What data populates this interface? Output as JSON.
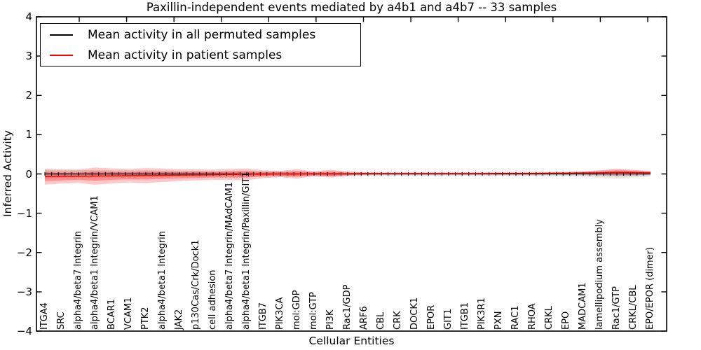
{
  "chart_data": {
    "type": "line",
    "title": "Paxillin-independent events mediated by a4b1 and a4b7 -- 33 samples",
    "xlabel": "Cellular Entities",
    "ylabel": "Inferred Activity",
    "ylim": [
      -4,
      4
    ],
    "yticks": [
      4,
      3,
      2,
      1,
      0,
      -1,
      -2,
      -3,
      -4
    ],
    "grid": false,
    "legend_position": "upper left",
    "categories": [
      "ITGA4",
      "SRC",
      "alpha4/beta7 Integrin",
      "alpha4/beta1 Integrin/VCAM1",
      "BCAR1",
      "VCAM1",
      "PTK2",
      "alpha4/beta1 Integrin",
      "JAK2",
      "p130Cas/Crk/Dock1",
      "cell adhesion",
      "alpha4/beta7 Integrin/MAdCAM1",
      "alpha4/beta1 Integrin/Paxillin/GIT1",
      "ITGB7",
      "PIK3CA",
      "mol:GDP",
      "mol:GTP",
      "PI3K",
      "Rac1/GDP",
      "ARF6",
      "CBL",
      "CRK",
      "DOCK1",
      "EPOR",
      "GIT1",
      "ITGB1",
      "PIK3R1",
      "PXN",
      "RAC1",
      "RHOA",
      "CRKL",
      "EPO",
      "MADCAM1",
      "lamellipodium assembly",
      "Rac1/GTP",
      "CRKL/CBL",
      "EPO/EPOR (dimer)"
    ],
    "series": [
      {
        "name": "Mean activity in all permuted samples",
        "color": "#000000",
        "values": [
          0,
          0,
          0,
          0,
          0,
          0,
          0,
          0,
          0,
          0,
          0,
          0,
          0,
          0,
          0,
          0,
          0,
          0,
          0,
          0,
          0,
          0,
          0,
          0,
          0,
          0,
          0,
          0,
          0,
          0,
          0,
          0,
          0,
          0,
          0,
          0,
          0
        ]
      },
      {
        "name": "Mean activity in patient samples",
        "color": "#ff0000",
        "values": [
          -0.07,
          -0.065,
          -0.06,
          -0.055,
          -0.05,
          -0.045,
          -0.04,
          -0.035,
          -0.03,
          -0.025,
          -0.02,
          -0.015,
          -0.01,
          -0.005,
          0,
          0,
          0.005,
          0.005,
          0.005,
          0.01,
          0.01,
          0.01,
          0.01,
          0.01,
          0.01,
          0.01,
          0.01,
          0.015,
          0.015,
          0.015,
          0.02,
          0.02,
          0.025,
          0.03,
          0.04,
          0.035,
          0.03
        ]
      }
    ],
    "bands": [
      {
        "name": "permuted samples spread outer",
        "color": "#000000",
        "opacity": 0.09,
        "center_series": 0,
        "half_width": [
          0.11,
          0.1,
          0.1,
          0.1,
          0.095,
          0.09,
          0.09,
          0.085,
          0.08,
          0.08,
          0.075,
          0.075,
          0.08,
          0.07,
          0.075,
          0.07,
          0.06,
          0.065,
          0.06,
          0.055,
          0.05,
          0.05,
          0.05,
          0.05,
          0.05,
          0.05,
          0.05,
          0.05,
          0.05,
          0.055,
          0.055,
          0.06,
          0.07,
          0.1,
          0.12,
          0.1,
          0.06
        ]
      },
      {
        "name": "permuted samples spread inner",
        "color": "#000000",
        "opacity": 0.08,
        "center_series": 0,
        "half_width": [
          0.066,
          0.06,
          0.06,
          0.06,
          0.057,
          0.054,
          0.054,
          0.051,
          0.048,
          0.048,
          0.045,
          0.045,
          0.048,
          0.042,
          0.045,
          0.042,
          0.036,
          0.039,
          0.036,
          0.033,
          0.03,
          0.03,
          0.03,
          0.03,
          0.03,
          0.03,
          0.03,
          0.03,
          0.03,
          0.033,
          0.033,
          0.036,
          0.042,
          0.06,
          0.072,
          0.06,
          0.036
        ]
      },
      {
        "name": "patient samples spread outer",
        "color": "#ff0000",
        "opacity": 0.22,
        "center_series": 1,
        "half_width": [
          0.2,
          0.18,
          0.17,
          0.22,
          0.19,
          0.17,
          0.19,
          0.17,
          0.15,
          0.14,
          0.13,
          0.14,
          0.15,
          0.1,
          0.08,
          0.12,
          0.06,
          0.1,
          0.05,
          0.03,
          0.02,
          0.02,
          0.02,
          0.02,
          0.02,
          0.02,
          0.02,
          0.02,
          0.02,
          0.02,
          0.02,
          0.03,
          0.04,
          0.06,
          0.09,
          0.07,
          0.05
        ]
      },
      {
        "name": "patient samples spread inner",
        "color": "#ff0000",
        "opacity": 0.28,
        "center_series": 1,
        "half_width": [
          0.11,
          0.1,
          0.09,
          0.12,
          0.1,
          0.09,
          0.1,
          0.09,
          0.08,
          0.08,
          0.07,
          0.08,
          0.08,
          0.055,
          0.044,
          0.066,
          0.033,
          0.055,
          0.028,
          0.017,
          0.012,
          0.012,
          0.012,
          0.012,
          0.012,
          0.012,
          0.012,
          0.012,
          0.012,
          0.012,
          0.012,
          0.017,
          0.022,
          0.033,
          0.05,
          0.04,
          0.028
        ]
      }
    ]
  },
  "legend": {
    "items": [
      {
        "label": "Mean activity in all permuted samples",
        "color": "#000000"
      },
      {
        "label": "Mean activity in patient samples",
        "color": "#ff0000"
      }
    ]
  }
}
